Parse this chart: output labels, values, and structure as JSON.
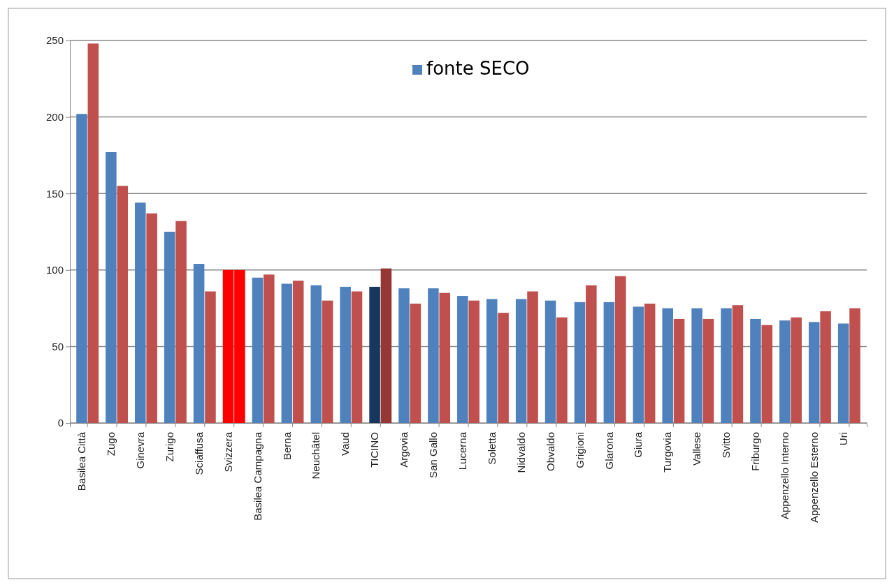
{
  "chart_data": {
    "type": "bar",
    "categories": [
      "Basilea Città",
      "Zugo",
      "Ginevra",
      "Zurigo",
      "Sciaffusa",
      "Svizzera",
      "Basilea Campagna",
      "Berna",
      "Neuchâtel",
      "Vaud",
      "TICINO",
      "Argovia",
      "San Gallo",
      "Lucerna",
      "Soletta",
      "Nidvaldo",
      "Obvaldo",
      "Grigioni",
      "Glarona",
      "Giura",
      "Turgovia",
      "Vallese",
      "Svitto",
      "Friburgo",
      "Appenzello Interno",
      "Appenzello Esterno",
      "Uri"
    ],
    "series": [
      {
        "name": "fonte SECO",
        "color": "#4f81bd",
        "colors": [
          null,
          null,
          null,
          null,
          null,
          "#ff0000",
          null,
          null,
          null,
          null,
          "#17375e",
          null,
          null,
          null,
          null,
          null,
          null,
          null,
          null,
          null,
          null,
          null,
          null,
          null,
          null,
          null,
          null
        ],
        "values": [
          202,
          177,
          144,
          125,
          104,
          100,
          95,
          91,
          90,
          89,
          89,
          88,
          88,
          83,
          81,
          81,
          80,
          79,
          79,
          76,
          75,
          75,
          75,
          68,
          67,
          66,
          65
        ]
      },
      {
        "color": "#c0504d",
        "colors": [
          null,
          null,
          null,
          null,
          null,
          "#ff0000",
          null,
          null,
          null,
          null,
          "#953735",
          null,
          null,
          null,
          null,
          null,
          null,
          null,
          null,
          null,
          null,
          null,
          null,
          null,
          null,
          null,
          null
        ],
        "values": [
          248,
          155,
          137,
          132,
          86,
          100,
          97,
          93,
          80,
          86,
          101,
          78,
          85,
          80,
          72,
          86,
          69,
          90,
          96,
          78,
          68,
          68,
          77,
          64,
          69,
          73,
          75
        ]
      }
    ],
    "ylim": [
      0,
      250
    ],
    "yticks": [
      0,
      50,
      100,
      150,
      200,
      250
    ],
    "grid": "y",
    "legend": "top right"
  }
}
